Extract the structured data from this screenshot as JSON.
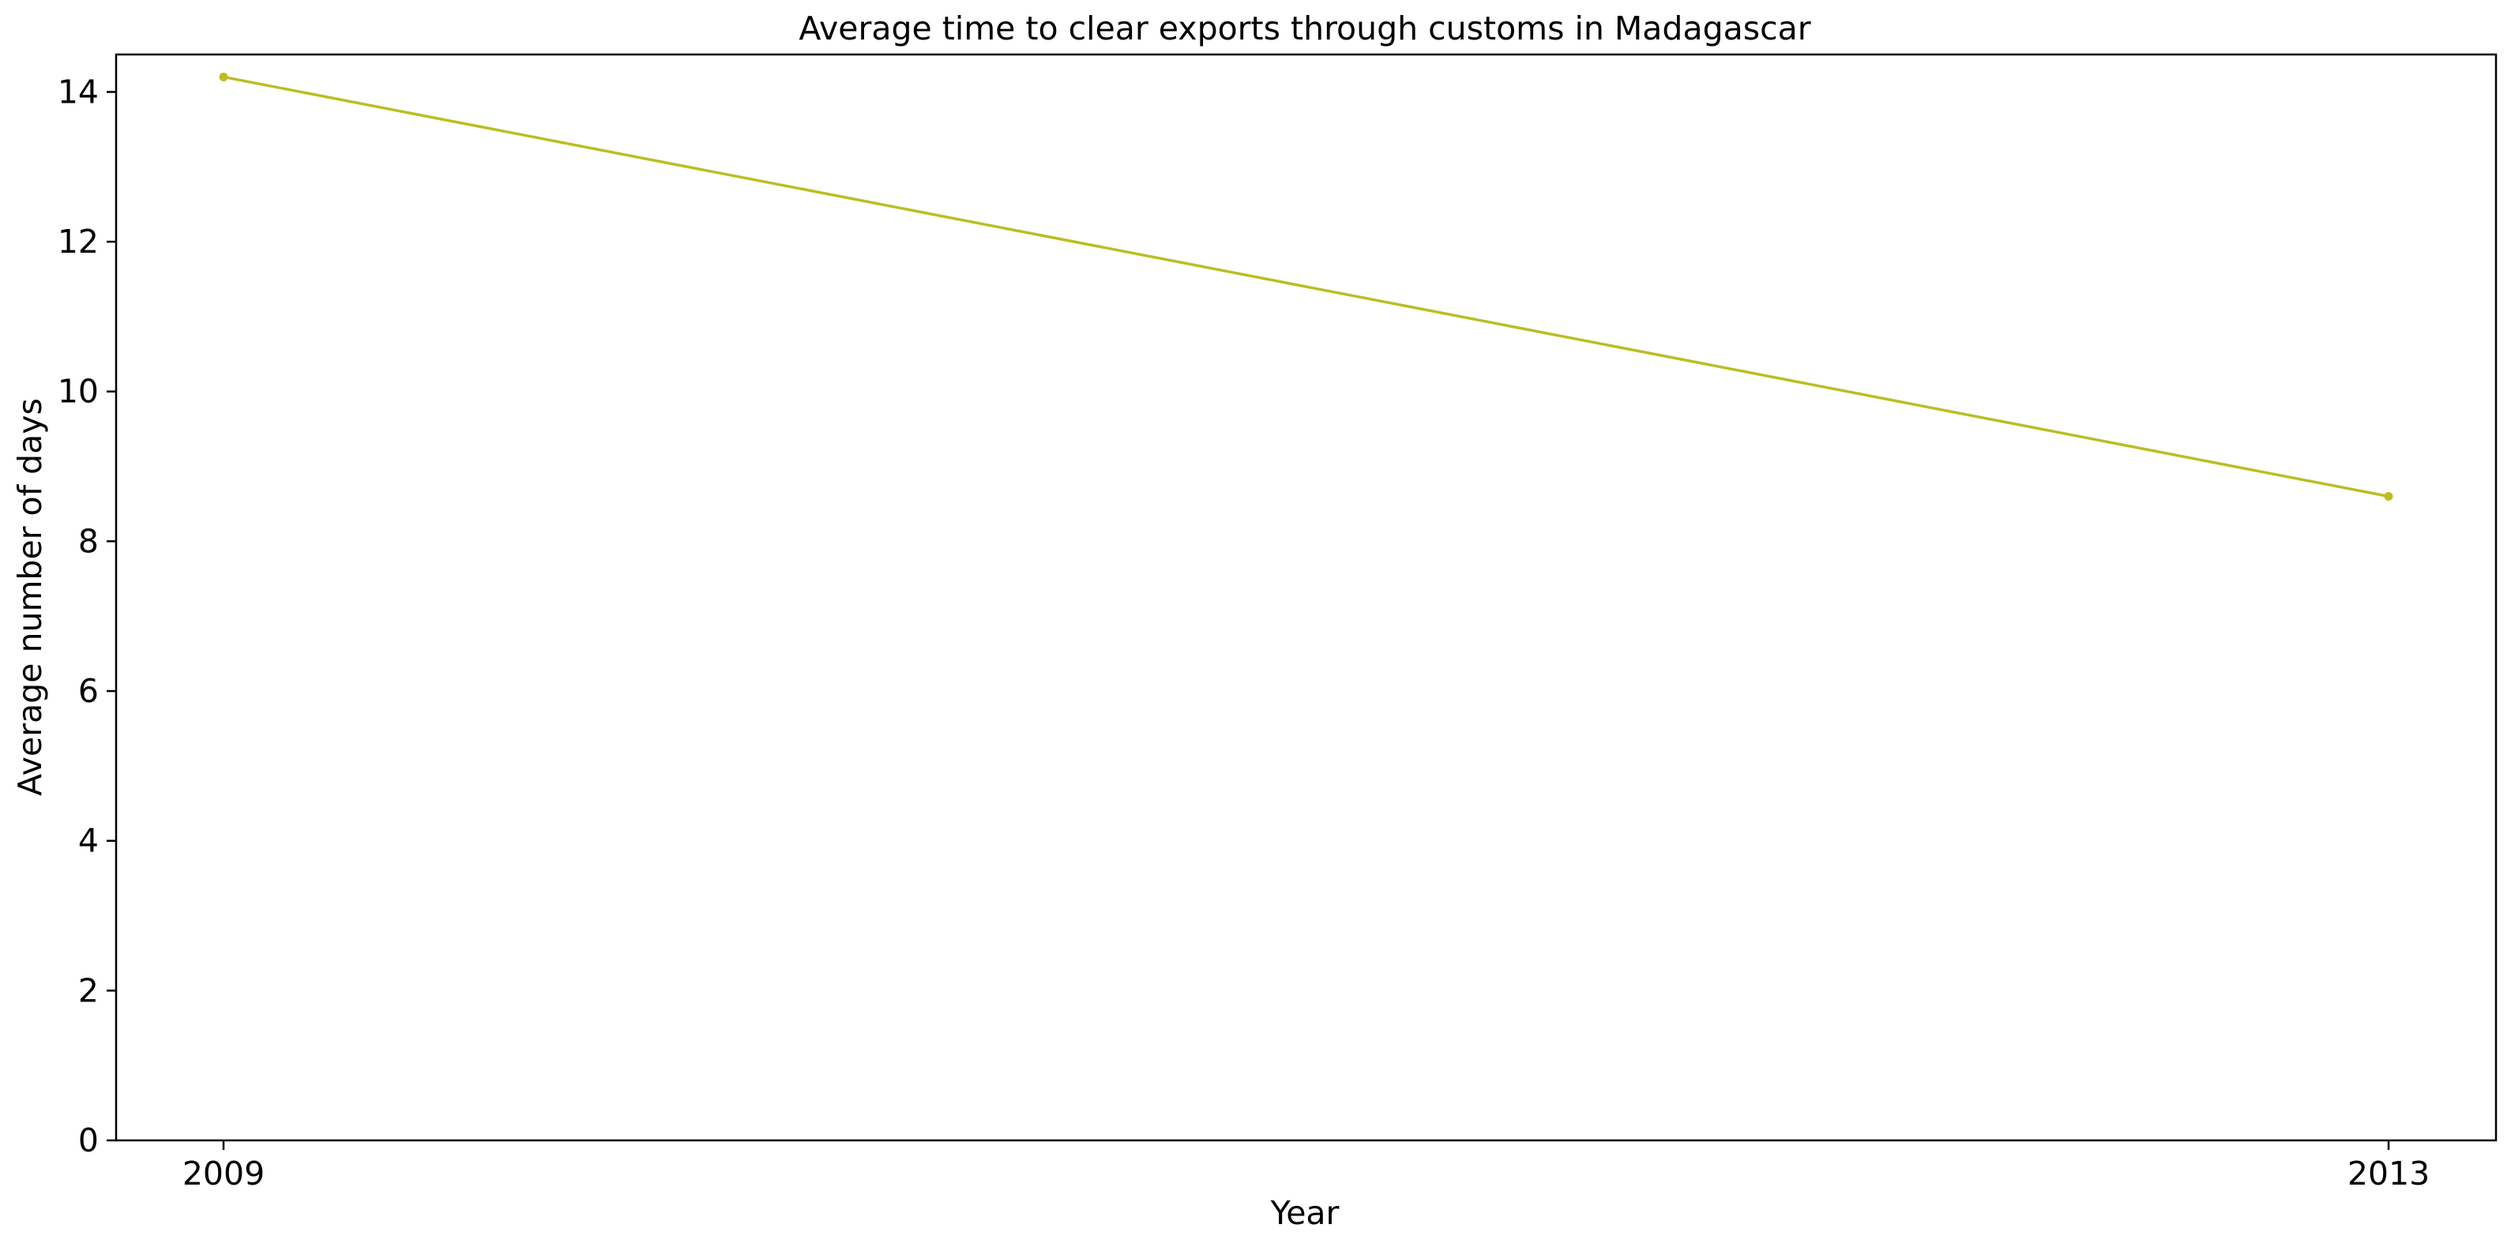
{
  "chart_data": {
    "type": "line",
    "title": "Average time to clear exports through customs in Madagascar",
    "xlabel": "Year",
    "ylabel": "Average number of days",
    "x": [
      2009,
      2013
    ],
    "x_tick_labels": [
      "2009",
      "2013"
    ],
    "series": [
      {
        "values": [
          14.2,
          8.6
        ],
        "color": "#bcbd22"
      }
    ],
    "ylim": [
      0,
      14.5
    ],
    "y_ticks": [
      0,
      2,
      4,
      6,
      8,
      10,
      12,
      14
    ],
    "grid": false,
    "legend": "none"
  }
}
